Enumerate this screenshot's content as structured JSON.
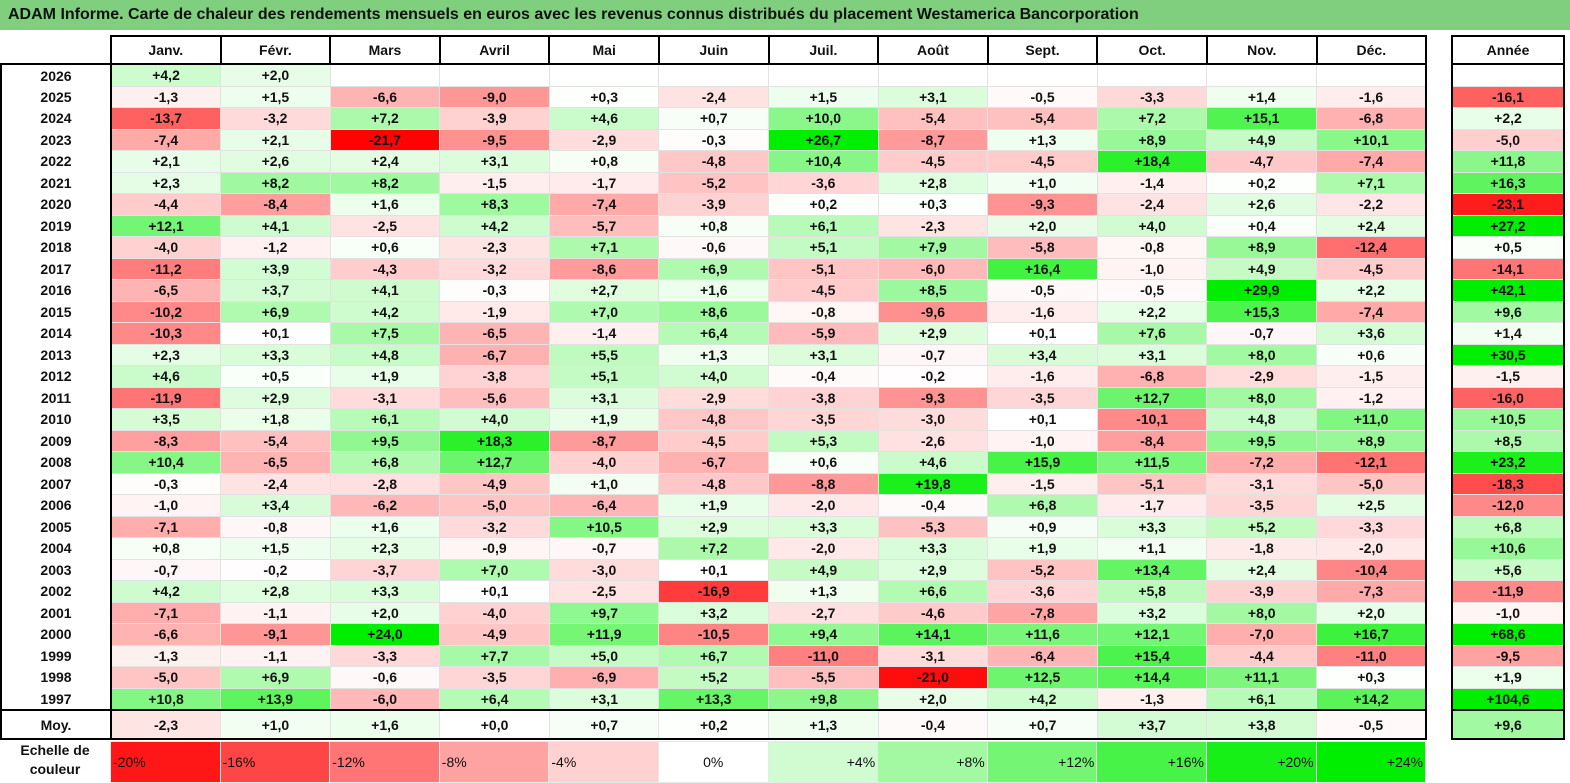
{
  "title": "ADAM Informe. Carte de chaleur des rendements mensuels en euros avec les revenus connus distribués du placement Westamerica Bancorporation",
  "annual_header": "Année",
  "scale_label": "Echelle de couleur",
  "scale": [
    "-20%",
    "-16%",
    "-12%",
    "-8%",
    "-4%",
    "0%",
    "+4%",
    "+8%",
    "+12%",
    "+16%",
    "+20%",
    "+24%"
  ],
  "colors": {
    "negative": "#ff0000",
    "positive": "#00ee00",
    "neutral": "#ffffff",
    "title_bg": "#7fcf7f"
  },
  "chart_data": {
    "type": "heatmap",
    "title": "ADAM Informe. Carte de chaleur des rendements mensuels en euros avec les revenus connus distribués du placement Westamerica Bancorporation",
    "columns": [
      "Janv.",
      "Févr.",
      "Mars",
      "Avril",
      "Mai",
      "Juin",
      "Juil.",
      "Août",
      "Sept.",
      "Oct.",
      "Nov.",
      "Déc."
    ],
    "rows": [
      {
        "year": "2026",
        "months": [
          "+4,2",
          "+2,0",
          "",
          "",
          "",
          "",
          "",
          "",
          "",
          "",
          "",
          ""
        ],
        "annual": ""
      },
      {
        "year": "2025",
        "months": [
          "-1,3",
          "+1,5",
          "-6,6",
          "-9,0",
          "+0,3",
          "-2,4",
          "+1,5",
          "+3,1",
          "-0,5",
          "-3,3",
          "+1,4",
          "-1,6"
        ],
        "annual": "-16,1"
      },
      {
        "year": "2024",
        "months": [
          "-13,7",
          "-3,2",
          "+7,2",
          "-3,9",
          "+4,6",
          "+0,7",
          "+10,0",
          "-5,4",
          "-5,4",
          "+7,2",
          "+15,1",
          "-6,8"
        ],
        "annual": "+2,2"
      },
      {
        "year": "2023",
        "months": [
          "-7,4",
          "+2,1",
          "-21,7",
          "-9,5",
          "-2,9",
          "-0,3",
          "+26,7",
          "-8,7",
          "+1,3",
          "+8,9",
          "+4,9",
          "+10,1"
        ],
        "annual": "-5,0"
      },
      {
        "year": "2022",
        "months": [
          "+2,1",
          "+2,6",
          "+2,4",
          "+3,1",
          "+0,8",
          "-4,8",
          "+10,4",
          "-4,5",
          "-4,5",
          "+18,4",
          "-4,7",
          "-7,4"
        ],
        "annual": "+11,8"
      },
      {
        "year": "2021",
        "months": [
          "+2,3",
          "+8,2",
          "+8,2",
          "-1,5",
          "-1,7",
          "-5,2",
          "-3,6",
          "+2,8",
          "+1,0",
          "-1,4",
          "+0,2",
          "+7,1"
        ],
        "annual": "+16,3"
      },
      {
        "year": "2020",
        "months": [
          "-4,4",
          "-8,4",
          "+1,6",
          "+8,3",
          "-7,4",
          "-3,9",
          "+0,2",
          "+0,3",
          "-9,3",
          "-2,4",
          "+2,6",
          "-2,2"
        ],
        "annual": "-23,1"
      },
      {
        "year": "2019",
        "months": [
          "+12,1",
          "+4,1",
          "-2,5",
          "+4,2",
          "-5,7",
          "+0,8",
          "+6,1",
          "-2,3",
          "+2,0",
          "+4,0",
          "+0,4",
          "+2,4"
        ],
        "annual": "+27,2"
      },
      {
        "year": "2018",
        "months": [
          "-4,0",
          "-1,2",
          "+0,6",
          "-2,3",
          "+7,1",
          "-0,6",
          "+5,1",
          "+7,9",
          "-5,8",
          "-0,8",
          "+8,9",
          "-12,4"
        ],
        "annual": "+0,5"
      },
      {
        "year": "2017",
        "months": [
          "-11,2",
          "+3,9",
          "-4,3",
          "-3,2",
          "-8,6",
          "+6,9",
          "-5,1",
          "-6,0",
          "+16,4",
          "-1,0",
          "+4,9",
          "-4,5"
        ],
        "annual": "-14,1"
      },
      {
        "year": "2016",
        "months": [
          "-6,5",
          "+3,7",
          "+4,1",
          "-0,3",
          "+2,7",
          "+1,6",
          "-4,5",
          "+8,5",
          "-0,5",
          "-0,5",
          "+29,9",
          "+2,2"
        ],
        "annual": "+42,1"
      },
      {
        "year": "2015",
        "months": [
          "-10,2",
          "+6,9",
          "+4,2",
          "-1,9",
          "+7,0",
          "+8,6",
          "-0,8",
          "-9,6",
          "-1,6",
          "+2,2",
          "+15,3",
          "-7,4"
        ],
        "annual": "+9,6"
      },
      {
        "year": "2014",
        "months": [
          "-10,3",
          "+0,1",
          "+7,5",
          "-6,5",
          "-1,4",
          "+6,4",
          "-5,9",
          "+2,9",
          "+0,1",
          "+7,6",
          "-0,7",
          "+3,6"
        ],
        "annual": "+1,4"
      },
      {
        "year": "2013",
        "months": [
          "+2,3",
          "+3,3",
          "+4,8",
          "-6,7",
          "+5,5",
          "+1,3",
          "+3,1",
          "-0,7",
          "+3,4",
          "+3,1",
          "+8,0",
          "+0,6"
        ],
        "annual": "+30,5"
      },
      {
        "year": "2012",
        "months": [
          "+4,6",
          "+0,5",
          "+1,9",
          "-3,8",
          "+5,1",
          "+4,0",
          "-0,4",
          "-0,2",
          "-1,6",
          "-6,8",
          "-2,9",
          "-1,5"
        ],
        "annual": "-1,5"
      },
      {
        "year": "2011",
        "months": [
          "-11,9",
          "+2,9",
          "-3,1",
          "-5,6",
          "+3,1",
          "-2,9",
          "-3,8",
          "-9,3",
          "-3,5",
          "+12,7",
          "+8,0",
          "-1,2"
        ],
        "annual": "-16,0"
      },
      {
        "year": "2010",
        "months": [
          "+3,5",
          "+1,8",
          "+6,1",
          "+4,0",
          "+1,9",
          "-4,8",
          "-3,5",
          "-3,0",
          "+0,1",
          "-10,1",
          "+4,8",
          "+11,0"
        ],
        "annual": "+10,5"
      },
      {
        "year": "2009",
        "months": [
          "-8,3",
          "-5,4",
          "+9,5",
          "+18,3",
          "-8,7",
          "-4,5",
          "+5,3",
          "-2,6",
          "-1,0",
          "-8,4",
          "+9,5",
          "+8,9"
        ],
        "annual": "+8,5"
      },
      {
        "year": "2008",
        "months": [
          "+10,4",
          "-6,5",
          "+6,8",
          "+12,7",
          "-4,0",
          "-6,7",
          "+0,6",
          "+4,6",
          "+15,9",
          "+11,5",
          "-7,2",
          "-12,1"
        ],
        "annual": "+23,2"
      },
      {
        "year": "2007",
        "months": [
          "-0,3",
          "-2,4",
          "-2,8",
          "-4,9",
          "+1,0",
          "-4,8",
          "-8,8",
          "+19,8",
          "-1,5",
          "-5,1",
          "-3,1",
          "-5,0"
        ],
        "annual": "-18,3"
      },
      {
        "year": "2006",
        "months": [
          "-1,0",
          "+3,4",
          "-6,2",
          "-5,0",
          "-6,4",
          "+1,9",
          "-2,0",
          "-0,4",
          "+6,8",
          "-1,7",
          "-3,5",
          "+2,5"
        ],
        "annual": "-12,0"
      },
      {
        "year": "2005",
        "months": [
          "-7,1",
          "-0,8",
          "+1,6",
          "-3,2",
          "+10,5",
          "+2,9",
          "+3,3",
          "-5,3",
          "+0,9",
          "+3,3",
          "+5,2",
          "-3,3"
        ],
        "annual": "+6,8"
      },
      {
        "year": "2004",
        "months": [
          "+0,8",
          "+1,5",
          "+2,3",
          "-0,9",
          "-0,7",
          "+7,2",
          "-2,0",
          "+3,3",
          "+1,9",
          "+1,1",
          "-1,8",
          "-2,0"
        ],
        "annual": "+10,6"
      },
      {
        "year": "2003",
        "months": [
          "-0,7",
          "-0,2",
          "-3,7",
          "+7,0",
          "-3,0",
          "+0,1",
          "+4,9",
          "+2,9",
          "-5,2",
          "+13,4",
          "+2,4",
          "-10,4"
        ],
        "annual": "+5,6"
      },
      {
        "year": "2002",
        "months": [
          "+4,2",
          "+2,8",
          "+3,3",
          "+0,1",
          "-2,5",
          "-16,9",
          "+1,3",
          "+6,6",
          "-3,6",
          "+5,8",
          "-3,9",
          "-7,3"
        ],
        "annual": "-11,9"
      },
      {
        "year": "2001",
        "months": [
          "-7,1",
          "-1,1",
          "+2,0",
          "-4,0",
          "+9,7",
          "+3,2",
          "-2,7",
          "-4,6",
          "-7,8",
          "+3,2",
          "+8,0",
          "+2,0"
        ],
        "annual": "-1,0"
      },
      {
        "year": "2000",
        "months": [
          "-6,6",
          "-9,1",
          "+24,0",
          "-4,9",
          "+11,9",
          "-10,5",
          "+9,4",
          "+14,1",
          "+11,6",
          "+12,1",
          "-7,0",
          "+16,7"
        ],
        "annual": "+68,6"
      },
      {
        "year": "1999",
        "months": [
          "-1,3",
          "-1,1",
          "-3,3",
          "+7,7",
          "+5,0",
          "+6,7",
          "-11,0",
          "-3,1",
          "-6,4",
          "+15,4",
          "-4,4",
          "-11,0"
        ],
        "annual": "-9,5"
      },
      {
        "year": "1998",
        "months": [
          "-5,0",
          "+6,9",
          "-0,6",
          "-3,5",
          "-6,9",
          "+5,2",
          "-5,5",
          "-21,0",
          "+12,5",
          "+14,4",
          "+11,1",
          "+0,3"
        ],
        "annual": "+1,9"
      },
      {
        "year": "1997",
        "months": [
          "+10,8",
          "+13,9",
          "-6,0",
          "+6,4",
          "+3,1",
          "+13,3",
          "+9,8",
          "+2,0",
          "+4,2",
          "-1,3",
          "+6,1",
          "+14,2"
        ],
        "annual": "+104,6"
      }
    ],
    "average": {
      "label": "Moy.",
      "months": [
        "-2,3",
        "+1,0",
        "+1,6",
        "+0,0",
        "+0,7",
        "+0,2",
        "+1,3",
        "-0,4",
        "+0,7",
        "+3,7",
        "+3,8",
        "-0,5"
      ],
      "annual": "+9,6"
    },
    "color_scale_range": [
      -20,
      24
    ]
  }
}
